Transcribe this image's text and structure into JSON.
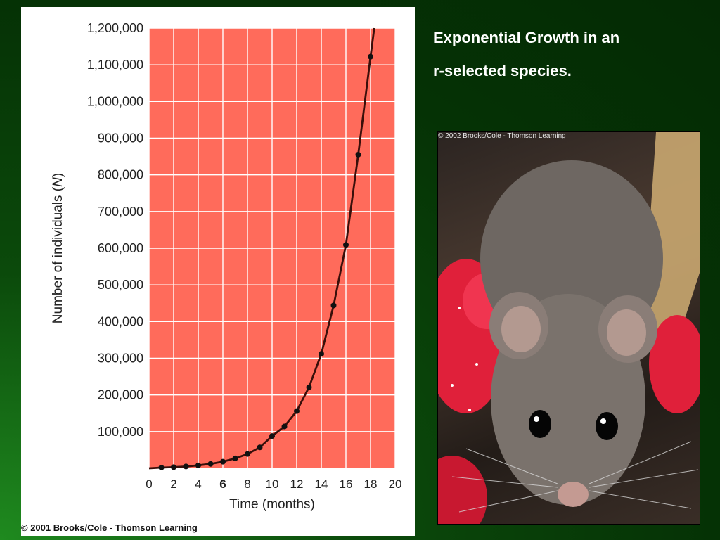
{
  "slide": {
    "title_line1": "Exponential Growth in an",
    "title_line2": "r-selected species.",
    "chart_copyright": "© 2001 Brooks/Cole - Thomson Learning",
    "photo_credit": "© 2002 Brooks/Cole - Thomson Learning",
    "photo_subject": "mouse photograph",
    "background_color": "#053205",
    "plot_background_color": "#ff6b5b"
  },
  "chart_data": {
    "type": "line",
    "title": "",
    "xlabel": "Time (months)",
    "ylabel_prefix": "Number of individuals (",
    "ylabel_var": "N",
    "ylabel_suffix": ")",
    "xlim": [
      0,
      20
    ],
    "ylim": [
      0,
      1200000
    ],
    "x_ticks": [
      0,
      2,
      4,
      6,
      8,
      10,
      12,
      14,
      16,
      18,
      20
    ],
    "x_tick_labels": [
      "0",
      "2",
      "4",
      "6",
      "8",
      "10",
      "12",
      "14",
      "16",
      "18",
      "20"
    ],
    "x_tick_bold": [
      6
    ],
    "y_ticks": [
      100000,
      200000,
      300000,
      400000,
      500000,
      600000,
      700000,
      800000,
      900000,
      1000000,
      1100000,
      1200000
    ],
    "y_tick_labels": [
      "100,000",
      "200,000",
      "300,000",
      "400,000",
      "500,000",
      "600,000",
      "700,000",
      "800,000",
      "900,000",
      "1,000,000",
      "1,100,000",
      "1,200,000"
    ],
    "grid": true,
    "series": [
      {
        "x": [
          1,
          2,
          3,
          4,
          5,
          6,
          7,
          8,
          9,
          10,
          11,
          12,
          13,
          14,
          15,
          16,
          17,
          18
        ],
        "y": [
          2000,
          3000,
          5000,
          8000,
          12000,
          18000,
          27000,
          39000,
          57000,
          88000,
          114000,
          156000,
          221000,
          312000,
          444000,
          609000,
          855000,
          1122000
        ]
      }
    ],
    "curve_end": {
      "x": 18.3,
      "y": 1200000
    }
  }
}
